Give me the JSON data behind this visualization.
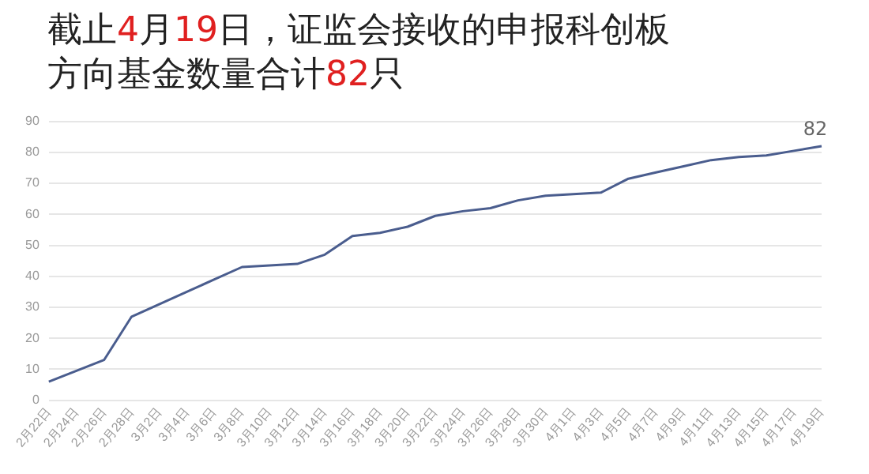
{
  "chart_data": {
    "type": "line",
    "title": "截止4月19日，证监会接收的申报科创板方向基金数量合计82只",
    "categories": [
      "2月22日",
      "2月24日",
      "2月26日",
      "2月28日",
      "3月2日",
      "3月4日",
      "3月6日",
      "3月8日",
      "3月10日",
      "3月12日",
      "3月14日",
      "3月16日",
      "3月18日",
      "3月20日",
      "3月22日",
      "3月24日",
      "3月26日",
      "3月28日",
      "3月30日",
      "4月1日",
      "4月3日",
      "4月5日",
      "4月7日",
      "4月9日",
      "4月11日",
      "4月13日",
      "4月15日",
      "4月17日",
      "4月19日"
    ],
    "series": [
      {
        "color": "#4a5d8e",
        "values": [
          6,
          9.5,
          13,
          27,
          31,
          35,
          39,
          43,
          43.5,
          44,
          47,
          53,
          54,
          56,
          59.5,
          61,
          62,
          64.5,
          66,
          66.5,
          67,
          71.5,
          73.5,
          75.5,
          77.5,
          78.5,
          79,
          80.5,
          82
        ],
        "value_labels": [
          null,
          null,
          null,
          null,
          null,
          null,
          null,
          null,
          null,
          null,
          null,
          null,
          null,
          null,
          null,
          null,
          null,
          null,
          null,
          null,
          null,
          null,
          null,
          null,
          null,
          null,
          null,
          null,
          "82"
        ]
      }
    ],
    "ylim": [
      0,
      90
    ],
    "yticks": [
      0,
      10,
      20,
      30,
      40,
      50,
      60,
      70,
      80,
      90
    ],
    "grid": "y",
    "legend": false,
    "marker": "none",
    "line_style": "solid"
  }
}
